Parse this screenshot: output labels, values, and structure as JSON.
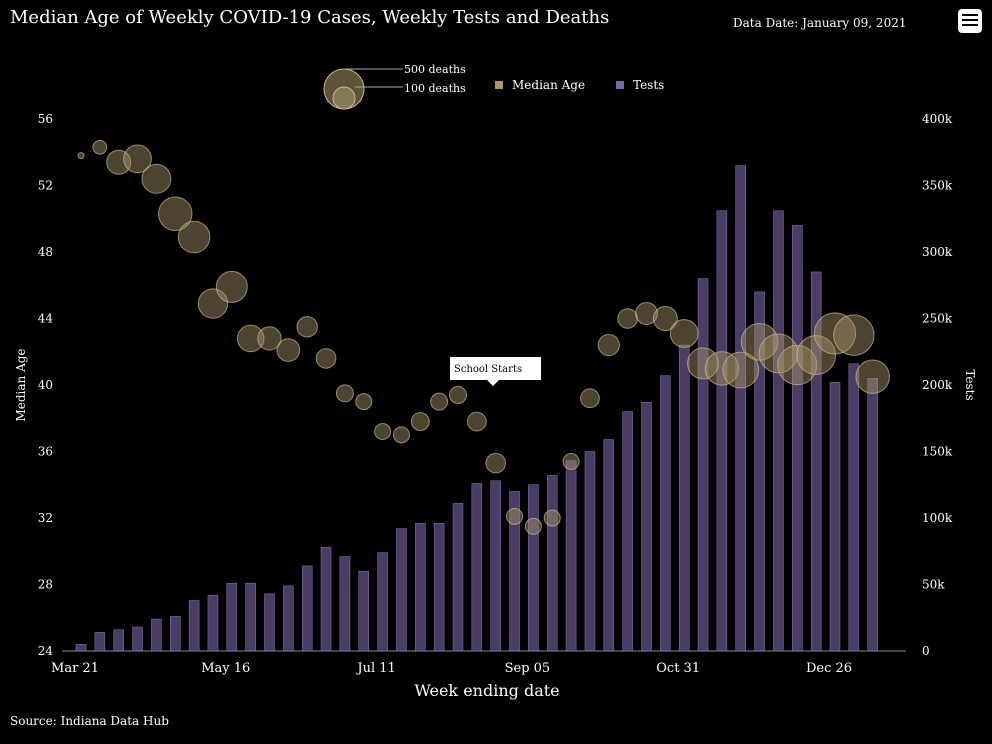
{
  "title": "Median Age of Weekly COVID-19 Cases, Weekly Tests and Deaths",
  "data_date": "Data Date: January 09, 2021",
  "source": "Source: Indiana Data Hub",
  "menu_icon": "hamburger-menu-icon",
  "legend": {
    "big_bubble": "500 deaths",
    "small_bubble": "100 deaths",
    "median_age": "Median Age",
    "tests": "Tests"
  },
  "annotation": "School Starts",
  "colors": {
    "bubble": "#a8976a",
    "bar": "#7a66a8",
    "background": "#000000"
  },
  "chart_data": {
    "type": "bar+bubble",
    "xlabel": "Week ending date",
    "ylabel_left": "Median Age",
    "ylabel_right": "Tests",
    "x_tick_labels": [
      "Mar 21",
      "May 16",
      "Jul 11",
      "Sep 05",
      "Oct 31",
      "Dec 26"
    ],
    "x_tick_index": [
      0,
      8,
      16,
      24,
      32,
      40
    ],
    "ylim_left": [
      24,
      56
    ],
    "y_left_ticks": [
      24,
      28,
      32,
      36,
      40,
      44,
      48,
      52,
      56
    ],
    "ylim_right": [
      0,
      400000
    ],
    "y_right_ticks": [
      "0",
      "50k",
      "100k",
      "150k",
      "200k",
      "250k",
      "300k",
      "350k",
      "400k"
    ],
    "annotation_at_index": 22,
    "tests": [
      5000,
      14000,
      16000,
      18000,
      24000,
      26000,
      38000,
      42000,
      51000,
      51000,
      43000,
      49000,
      64000,
      78000,
      71000,
      60000,
      74000,
      92000,
      96000,
      96000,
      111000,
      126000,
      128000,
      120000,
      125000,
      132000,
      143000,
      150000,
      159000,
      180000,
      187000,
      207000,
      230000,
      280000,
      331000,
      365000,
      270000,
      331000,
      320000,
      285000,
      202000,
      216000,
      205000
    ],
    "median_age": [
      53.8,
      54.3,
      53.4,
      53.6,
      52.4,
      50.3,
      48.9,
      44.9,
      45.9,
      42.8,
      42.8,
      42.1,
      43.5,
      41.6,
      39.5,
      39.0,
      37.2,
      37.0,
      37.8,
      39.0,
      39.4,
      37.8,
      35.3,
      32.1,
      31.5,
      32.0,
      35.4,
      39.2,
      42.4,
      44.0,
      44.3,
      44.0,
      43.1,
      41.3,
      41.0,
      40.9,
      42.6,
      41.9,
      41.2,
      41.8,
      43.1,
      43.0,
      40.5
    ],
    "deaths": [
      5,
      60,
      180,
      240,
      260,
      350,
      310,
      270,
      300,
      220,
      170,
      160,
      130,
      120,
      90,
      80,
      80,
      80,
      100,
      90,
      90,
      110,
      120,
      80,
      80,
      80,
      80,
      110,
      140,
      120,
      150,
      180,
      240,
      300,
      350,
      400,
      420,
      470,
      480,
      470,
      530,
      510,
      350
    ]
  }
}
